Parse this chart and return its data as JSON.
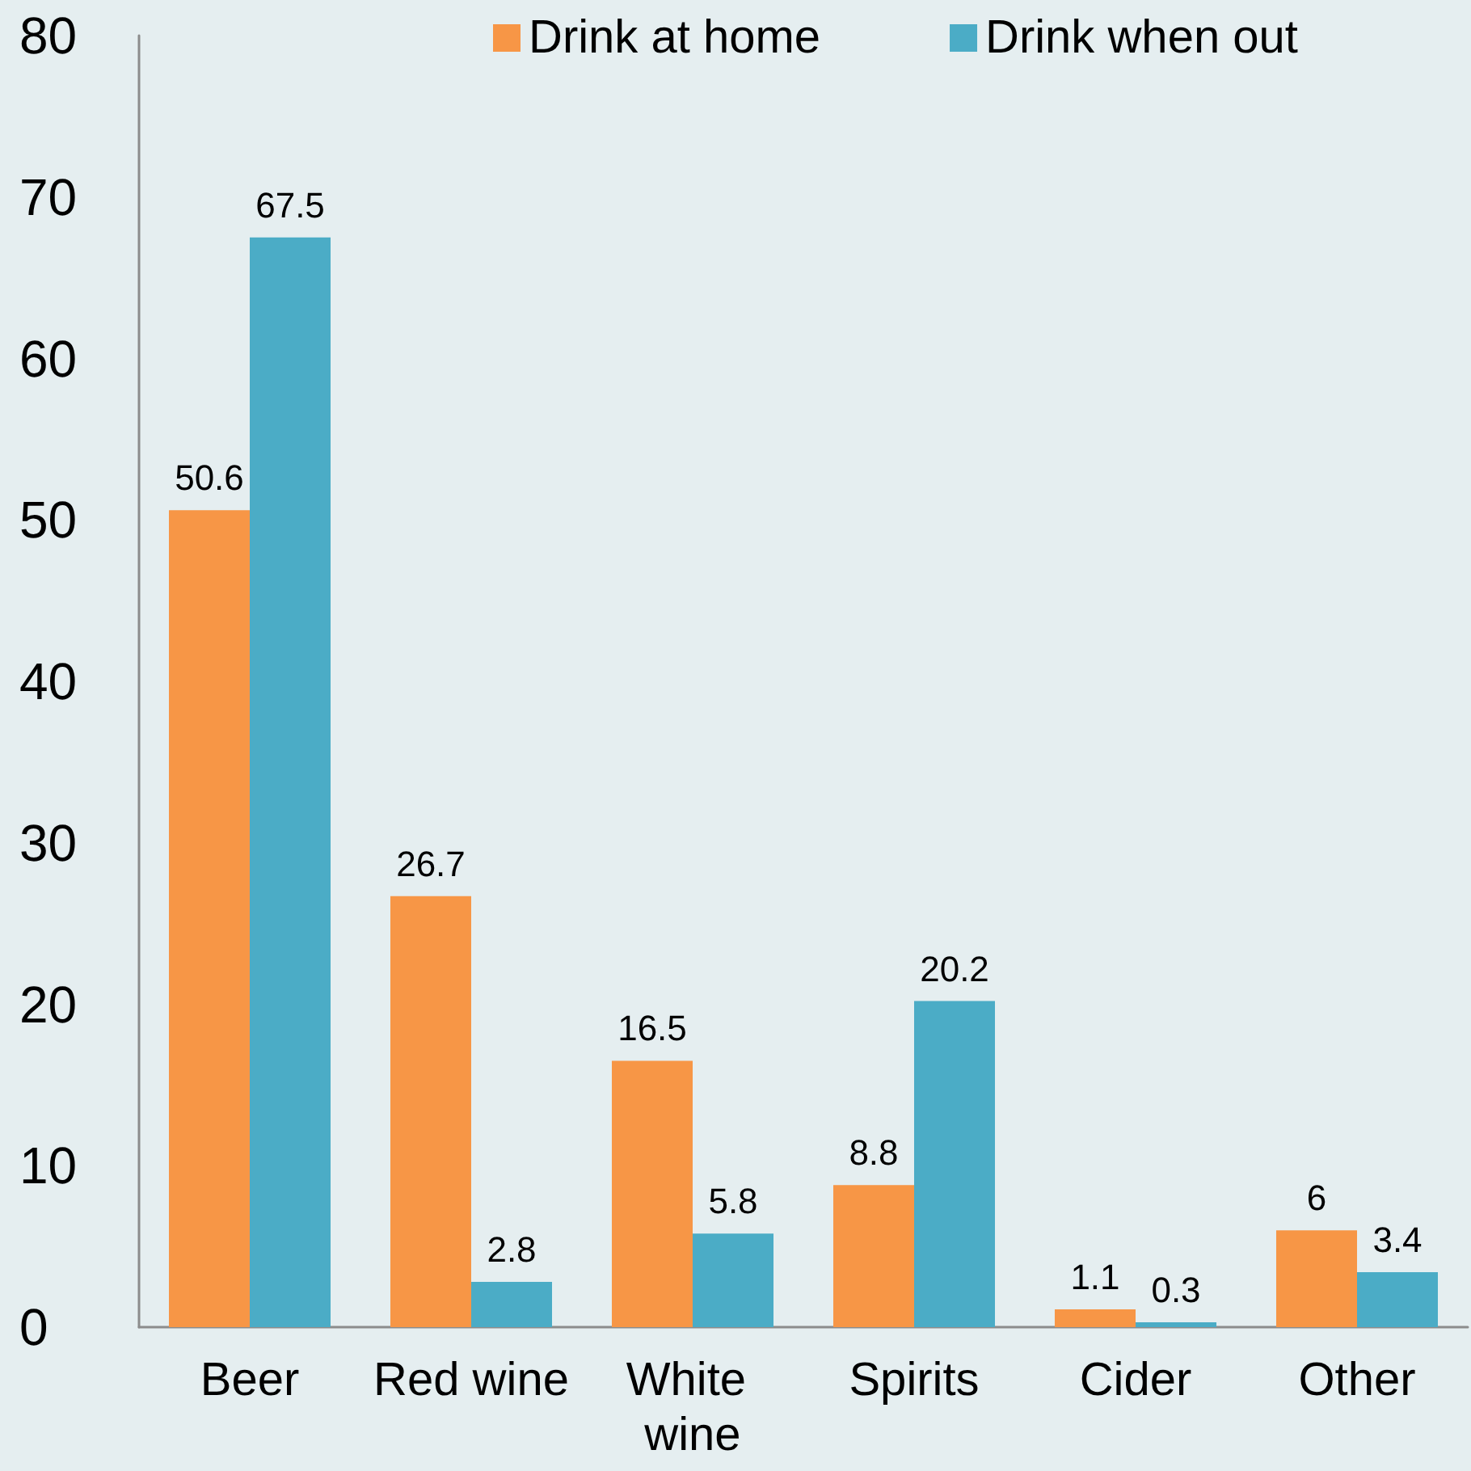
{
  "chart_data": {
    "type": "bar",
    "categories": [
      "Beer",
      "Red wine",
      "White wine",
      "Spirits",
      "Cider",
      "Other"
    ],
    "series": [
      {
        "name": "Drink at home",
        "color": "#f79646",
        "values": [
          50.6,
          26.7,
          16.5,
          8.8,
          1.1,
          6
        ]
      },
      {
        "name": "Drink when out",
        "color": "#4bacc6",
        "values": [
          67.5,
          2.8,
          5.8,
          20.2,
          0.3,
          3.4
        ]
      }
    ],
    "ylim": [
      0,
      80
    ],
    "yticks": [
      0,
      10,
      20,
      30,
      40,
      50,
      60,
      70,
      80
    ],
    "data_labels": true,
    "legend": "top"
  }
}
